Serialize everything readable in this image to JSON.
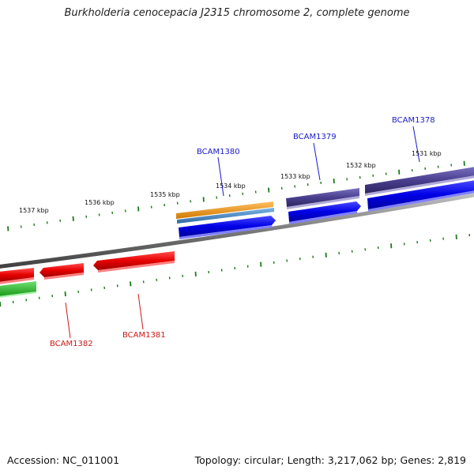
{
  "title": "Burkholderia cenocepacia J2315 chromosome 2, complete genome",
  "footer": {
    "accession": "Accession: NC_011001",
    "topology": "Topology: circular; Length: 3,217,062 bp; Genes: 2,819"
  },
  "colors": {
    "backbone": "#8a8a8a",
    "tick": "#1a7a1a",
    "forward_cds": "#0000e6",
    "forward_cds_dark": "#4a3f8f",
    "reverse_cds": "#e60000",
    "orange_feature": "#f0960f",
    "steel_feature": "#4a8cc8",
    "green_feature": "#30c030",
    "label_forward": "#1a1acc",
    "label_reverse": "#cc1a1a"
  },
  "scale_labels": [
    "1531 kbp",
    "1532 kbp",
    "1533 kbp",
    "1534 kbp",
    "1535 kbp",
    "1536 kbp",
    "1537 kbp"
  ],
  "gene_labels": {
    "forward": [
      "BCAM1378",
      "BCAM1379",
      "BCAM1380"
    ],
    "reverse": [
      "BCAM1381",
      "BCAM1382"
    ]
  }
}
